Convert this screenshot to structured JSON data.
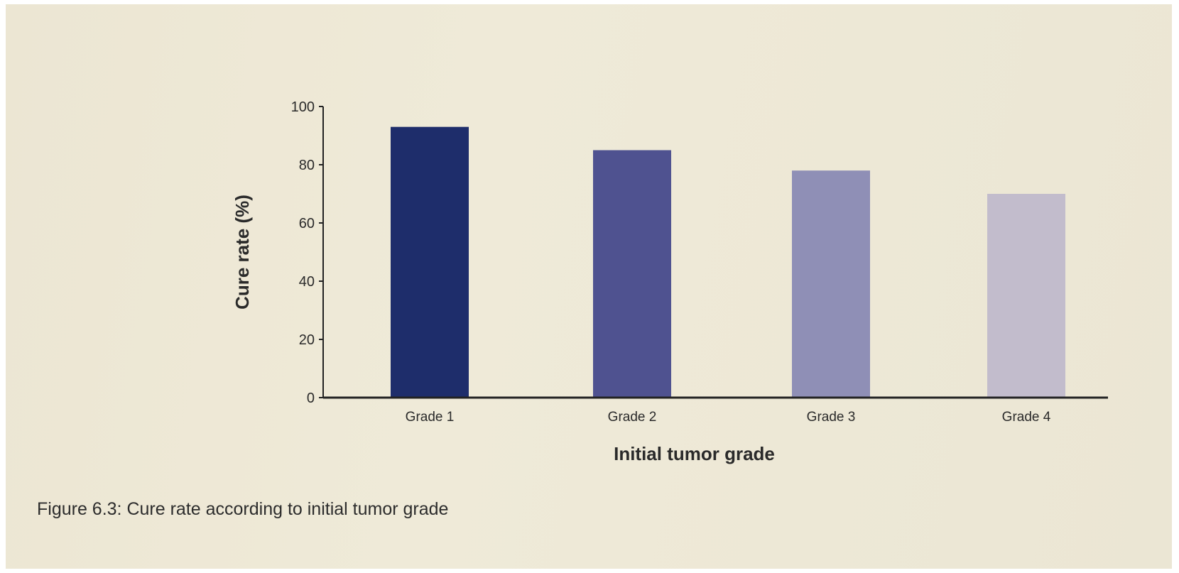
{
  "caption": "Figure 6.3: Cure rate according to initial tumor grade",
  "colors": {
    "axis": "#222222",
    "bars": [
      "#1e2d6b",
      "#4f5290",
      "#8f8fb6",
      "#c2bccc"
    ]
  },
  "chart_data": {
    "type": "bar",
    "categories": [
      "Grade 1",
      "Grade 2",
      "Grade 3",
      "Grade 4"
    ],
    "values": [
      93,
      85,
      78,
      70
    ],
    "title": "",
    "xlabel": "Initial tumor grade",
    "ylabel": "Cure rate (%)",
    "ylim": [
      0,
      100
    ],
    "yticks": [
      0,
      20,
      40,
      60,
      80,
      100
    ],
    "grid": false,
    "legend": "none"
  }
}
